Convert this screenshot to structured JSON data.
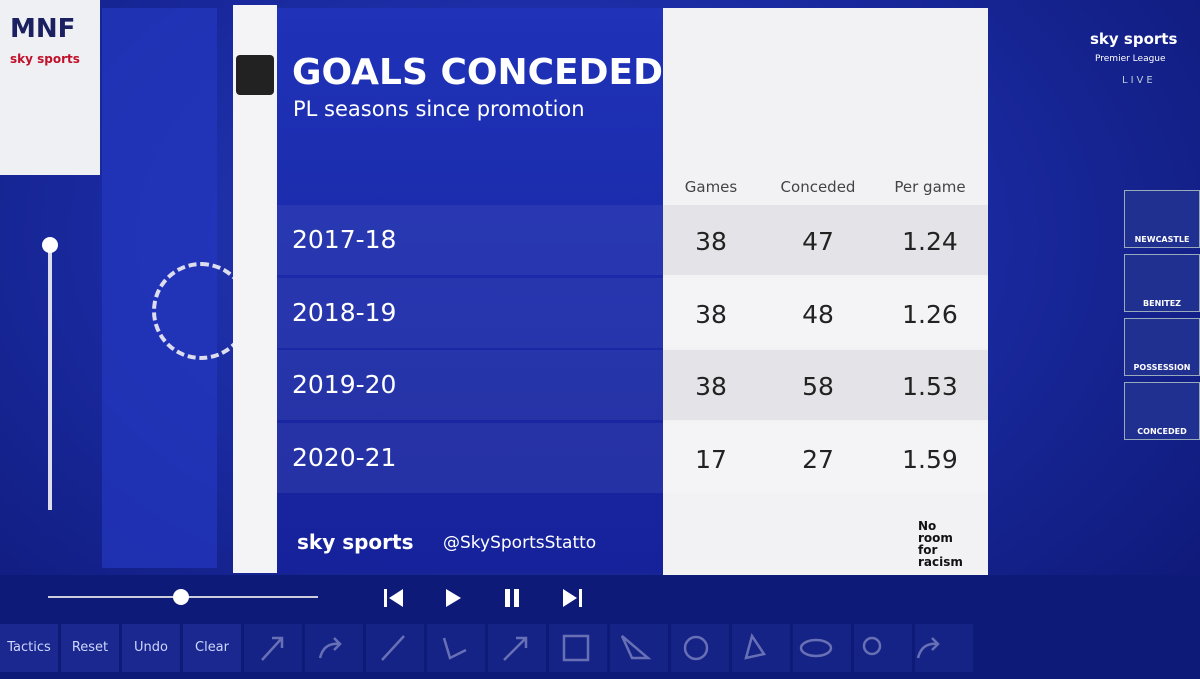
{
  "corner_brand": {
    "title": "MNF",
    "logo": "sky sports"
  },
  "broadcast_bug": {
    "logo": "sky sports",
    "competition": "Premier League",
    "status": "LIVE"
  },
  "header": {
    "title": "GOALS CONCEDED",
    "subtitle": "PL seasons since promotion"
  },
  "table": {
    "columns": [
      "Games",
      "Conceded",
      "Per game"
    ],
    "rows": [
      [
        "2017-18",
        38,
        47,
        1.24
      ],
      [
        "2018-19",
        38,
        48,
        1.26
      ],
      [
        "2019-20",
        38,
        58,
        1.53
      ],
      [
        "2020-21",
        17,
        27,
        1.59
      ]
    ]
  },
  "footer": {
    "logo": "sky sports",
    "handle": "@SkySportsStatto",
    "campaign": "No room for racism"
  },
  "thumbnails": [
    "NEWCASTLE",
    "BENITEZ",
    "POSSESSION",
    "CONCEDED"
  ],
  "toolbar": [
    "Tactics",
    "Reset",
    "Undo",
    "Clear"
  ]
}
